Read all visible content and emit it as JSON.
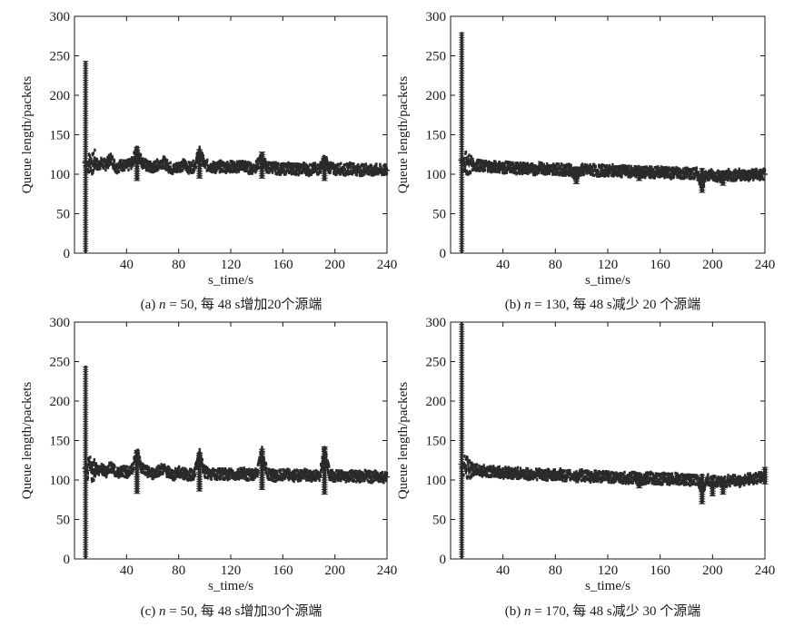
{
  "chart_data": [
    {
      "type": "scatter",
      "xlabel": "s_time/s",
      "ylabel": "Queue length/packets",
      "xlim": [
        0,
        240
      ],
      "ylim": [
        0,
        300
      ],
      "xticks": [
        40,
        80,
        120,
        160,
        200,
        240
      ],
      "yticks": [
        0,
        50,
        100,
        150,
        200,
        250,
        300
      ],
      "grid": false,
      "caption": {
        "prefix": "(a) ",
        "var": "n",
        "rest": " = 50, 每 48 s增加20个源端"
      },
      "series": [
        {
          "color": "#2a2a2a",
          "x": [
            0,
            1,
            2,
            3,
            4,
            5,
            6,
            7,
            8,
            9,
            10,
            12,
            14,
            16,
            18,
            20,
            24,
            28,
            32,
            36,
            40,
            44,
            48,
            52,
            56,
            60,
            64,
            68,
            72,
            76,
            80,
            84,
            88,
            92,
            96,
            100,
            104,
            108,
            112,
            116,
            120,
            124,
            128,
            132,
            136,
            140,
            144,
            148,
            152,
            156,
            160,
            164,
            168,
            172,
            176,
            180,
            184,
            188,
            192,
            196,
            200,
            204,
            208,
            212,
            216,
            220,
            224,
            228,
            232,
            236,
            240
          ],
          "y": [
            0,
            30,
            120,
            243,
            200,
            160,
            140,
            125,
            115,
            110,
            113,
            116,
            112,
            118,
            110,
            114,
            112,
            120,
            108,
            112,
            110,
            114,
            130,
            115,
            110,
            108,
            112,
            116,
            110,
            106,
            110,
            112,
            108,
            110,
            128,
            112,
            110,
            108,
            110,
            109,
            110,
            108,
            112,
            109,
            107,
            110,
            120,
            108,
            109,
            107,
            106,
            108,
            107,
            106,
            108,
            105,
            107,
            106,
            118,
            108,
            106,
            107,
            105,
            108,
            106,
            105,
            107,
            104,
            106,
            105,
            105
          ],
          "spikes": [
            {
              "x": 48,
              "ymin": 92,
              "ymax": 136
            },
            {
              "x": 96,
              "ymin": 95,
              "ymax": 132
            },
            {
              "x": 144,
              "ymin": 95,
              "ymax": 128
            },
            {
              "x": 192,
              "ymin": 92,
              "ymax": 123
            }
          ]
        }
      ]
    },
    {
      "type": "scatter",
      "xlabel": "s_time/s",
      "ylabel": "Queue length/packets",
      "xlim": [
        0,
        240
      ],
      "ylim": [
        0,
        300
      ],
      "xticks": [
        40,
        80,
        120,
        160,
        200,
        240
      ],
      "yticks": [
        0,
        50,
        100,
        150,
        200,
        250,
        300
      ],
      "grid": false,
      "caption": {
        "prefix": "(b) ",
        "var": "n",
        "rest": " = 130, 每 48 s减少 20 个源端"
      },
      "series": [
        {
          "color": "#2a2a2a",
          "x": [
            0,
            1,
            2,
            3,
            4,
            5,
            6,
            7,
            8,
            9,
            10,
            12,
            14,
            16,
            18,
            20,
            24,
            28,
            32,
            36,
            40,
            44,
            48,
            52,
            56,
            60,
            64,
            68,
            72,
            76,
            80,
            84,
            88,
            92,
            96,
            100,
            104,
            108,
            112,
            116,
            120,
            124,
            128,
            132,
            136,
            140,
            144,
            148,
            152,
            156,
            160,
            164,
            168,
            172,
            176,
            180,
            184,
            188,
            192,
            196,
            200,
            204,
            208,
            212,
            216,
            220,
            224,
            228,
            232,
            236,
            240
          ],
          "y": [
            0,
            40,
            160,
            280,
            230,
            180,
            140,
            125,
            118,
            115,
            116,
            114,
            112,
            113,
            111,
            112,
            110,
            111,
            109,
            110,
            108,
            109,
            108,
            107,
            108,
            107,
            106,
            108,
            107,
            106,
            107,
            106,
            105,
            106,
            98,
            106,
            105,
            106,
            104,
            105,
            104,
            105,
            103,
            104,
            103,
            104,
            103,
            102,
            103,
            102,
            103,
            102,
            101,
            102,
            101,
            102,
            100,
            101,
            88,
            100,
            99,
            98,
            96,
            99,
            98,
            100,
            99,
            98,
            100,
            99,
            100
          ],
          "spikes": [
            {
              "x": 96,
              "ymin": 88,
              "ymax": 110
            },
            {
              "x": 144,
              "ymin": 92,
              "ymax": 108
            },
            {
              "x": 192,
              "ymin": 77,
              "ymax": 108
            },
            {
              "x": 208,
              "ymin": 86,
              "ymax": 105
            }
          ]
        }
      ]
    },
    {
      "type": "scatter",
      "xlabel": "s_time/s",
      "ylabel": "Queue length/packets",
      "xlim": [
        0,
        240
      ],
      "ylim": [
        0,
        300
      ],
      "xticks": [
        40,
        80,
        120,
        160,
        200,
        240
      ],
      "yticks": [
        0,
        50,
        100,
        150,
        200,
        250,
        300
      ],
      "grid": false,
      "caption": {
        "prefix": "(c) ",
        "var": "n",
        "rest": " = 50, 每 48 s增加30个源端"
      },
      "series": [
        {
          "color": "#2a2a2a",
          "x": [
            0,
            1,
            2,
            3,
            4,
            5,
            6,
            7,
            8,
            9,
            10,
            12,
            14,
            16,
            18,
            20,
            24,
            28,
            32,
            36,
            40,
            44,
            48,
            52,
            56,
            60,
            64,
            68,
            72,
            76,
            80,
            84,
            88,
            92,
            96,
            100,
            104,
            108,
            112,
            116,
            120,
            124,
            128,
            132,
            136,
            140,
            144,
            148,
            152,
            156,
            160,
            164,
            168,
            172,
            176,
            180,
            184,
            188,
            192,
            196,
            200,
            204,
            208,
            212,
            216,
            220,
            224,
            228,
            232,
            236,
            240
          ],
          "y": [
            0,
            30,
            120,
            245,
            210,
            170,
            140,
            125,
            115,
            110,
            112,
            116,
            110,
            118,
            112,
            114,
            110,
            118,
            108,
            112,
            110,
            112,
            135,
            114,
            110,
            108,
            112,
            114,
            110,
            106,
            110,
            108,
            106,
            108,
            132,
            110,
            108,
            106,
            108,
            107,
            108,
            106,
            110,
            107,
            106,
            108,
            135,
            108,
            106,
            105,
            106,
            107,
            105,
            106,
            107,
            105,
            106,
            104,
            140,
            106,
            105,
            106,
            104,
            106,
            105,
            104,
            106,
            103,
            105,
            104,
            104
          ],
          "spikes": [
            {
              "x": 48,
              "ymin": 83,
              "ymax": 138
            },
            {
              "x": 96,
              "ymin": 86,
              "ymax": 136
            },
            {
              "x": 144,
              "ymin": 88,
              "ymax": 140
            },
            {
              "x": 192,
              "ymin": 82,
              "ymax": 142
            }
          ]
        }
      ]
    },
    {
      "type": "scatter",
      "xlabel": "s_time/s",
      "ylabel": "Queue length/packets",
      "xlim": [
        0,
        240
      ],
      "ylim": [
        0,
        300
      ],
      "xticks": [
        40,
        80,
        120,
        160,
        200,
        240
      ],
      "yticks": [
        0,
        50,
        100,
        150,
        200,
        250,
        300
      ],
      "grid": false,
      "caption": {
        "prefix": "(b) ",
        "var": "n",
        "rest": " = 170, 每 48 s减少 30 个源端"
      },
      "series": [
        {
          "color": "#2a2a2a",
          "x": [
            0,
            1,
            2,
            3,
            4,
            5,
            6,
            7,
            8,
            9,
            10,
            12,
            14,
            16,
            18,
            20,
            24,
            28,
            32,
            36,
            40,
            44,
            48,
            52,
            56,
            60,
            64,
            68,
            72,
            76,
            80,
            84,
            88,
            92,
            96,
            100,
            104,
            108,
            112,
            116,
            120,
            124,
            128,
            132,
            136,
            140,
            144,
            148,
            152,
            156,
            160,
            164,
            168,
            172,
            176,
            180,
            184,
            188,
            192,
            196,
            200,
            204,
            208,
            212,
            216,
            220,
            224,
            228,
            232,
            236,
            240
          ],
          "y": [
            0,
            50,
            200,
            300,
            250,
            190,
            145,
            128,
            120,
            116,
            118,
            116,
            114,
            115,
            112,
            113,
            111,
            112,
            110,
            111,
            109,
            110,
            108,
            109,
            108,
            107,
            108,
            107,
            106,
            107,
            106,
            107,
            105,
            106,
            104,
            106,
            105,
            104,
            105,
            104,
            104,
            103,
            104,
            103,
            102,
            103,
            100,
            102,
            103,
            102,
            101,
            102,
            101,
            102,
            100,
            101,
            100,
            101,
            88,
            100,
            98,
            99,
            96,
            99,
            100,
            98,
            100,
            101,
            102,
            103,
            104
          ],
          "spikes": [
            {
              "x": 144,
              "ymin": 90,
              "ymax": 110
            },
            {
              "x": 192,
              "ymin": 70,
              "ymax": 108
            },
            {
              "x": 200,
              "ymin": 80,
              "ymax": 106
            },
            {
              "x": 208,
              "ymin": 82,
              "ymax": 104
            },
            {
              "x": 240,
              "ymin": 95,
              "ymax": 116
            }
          ]
        }
      ]
    }
  ]
}
